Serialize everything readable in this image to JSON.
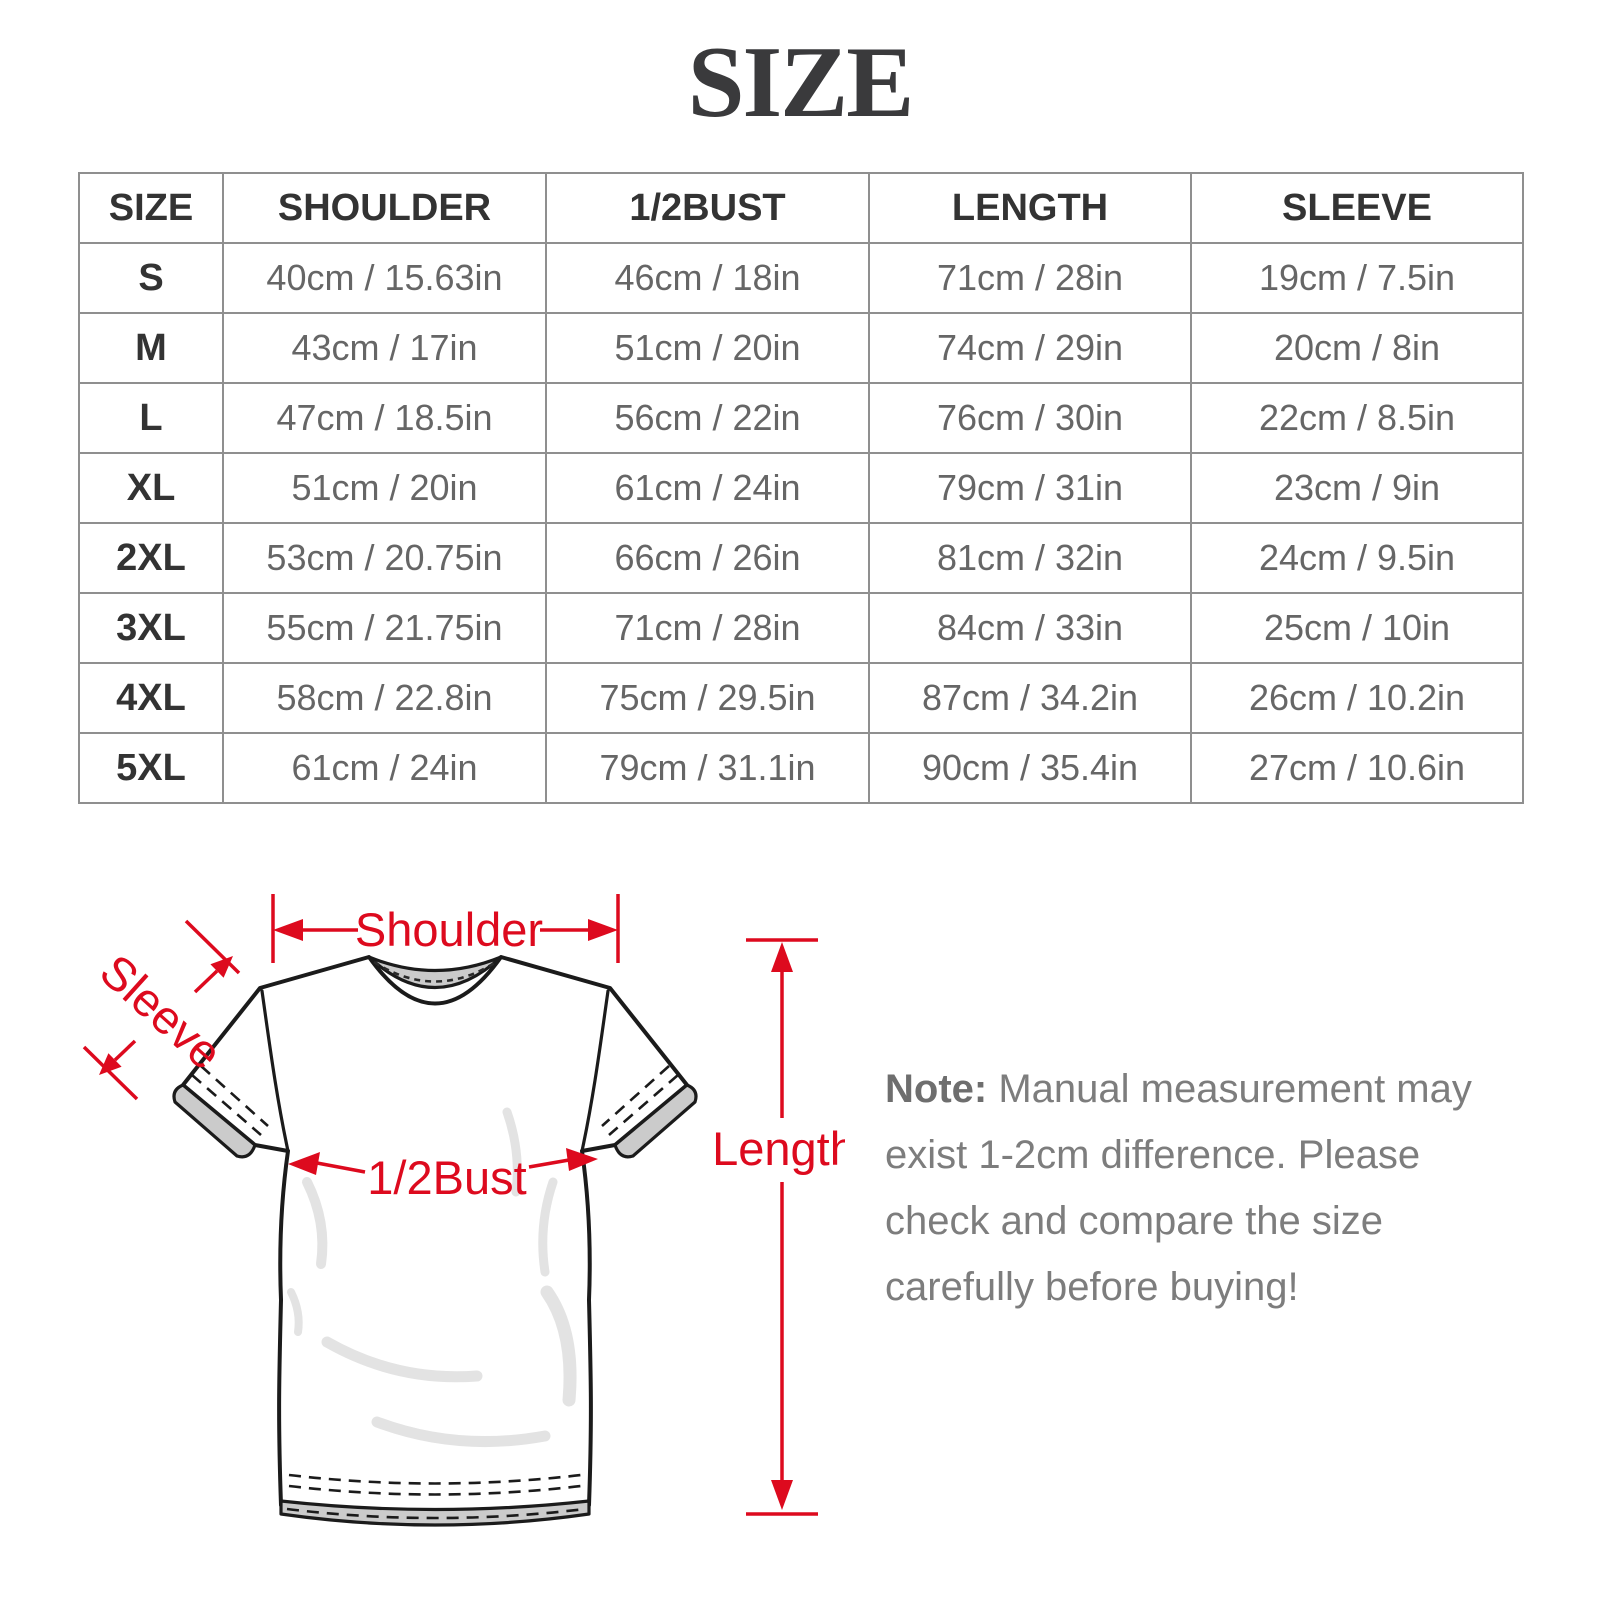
{
  "title": "SIZE",
  "table": {
    "headers": [
      "SIZE",
      "SHOULDER",
      "1/2BUST",
      "LENGTH",
      "SLEEVE"
    ],
    "rows": [
      [
        "S",
        "40cm / 15.63in",
        "46cm / 18in",
        "71cm / 28in",
        "19cm / 7.5in"
      ],
      [
        "M",
        "43cm / 17in",
        "51cm / 20in",
        "74cm / 29in",
        "20cm / 8in"
      ],
      [
        "L",
        "47cm / 18.5in",
        "56cm / 22in",
        "76cm / 30in",
        "22cm / 8.5in"
      ],
      [
        "XL",
        "51cm / 20in",
        "61cm / 24in",
        "79cm / 31in",
        "23cm / 9in"
      ],
      [
        "2XL",
        "53cm / 20.75in",
        "66cm / 26in",
        "81cm / 32in",
        "24cm / 9.5in"
      ],
      [
        "3XL",
        "55cm / 21.75in",
        "71cm / 28in",
        "84cm / 33in",
        "25cm / 10in"
      ],
      [
        "4XL",
        "58cm / 22.8in",
        "75cm / 29.5in",
        "87cm / 34.2in",
        "26cm / 10.2in"
      ],
      [
        "5XL",
        "61cm / 24in",
        "79cm / 31.1in",
        "90cm / 35.4in",
        "27cm / 10.6in"
      ]
    ]
  },
  "diagram": {
    "labels": {
      "shoulder": "Shoulder",
      "sleeve": "Sleeve",
      "half_bust": "1/2Bust",
      "length": "Length"
    }
  },
  "note": {
    "label": "Note:",
    "text": " Manual measurement may exist 1-2cm difference. Please check and compare the size carefully before buying!"
  },
  "colors": {
    "annotation_red": "#dd0a1e",
    "title_color": "#3a3a3c",
    "header_text": "#333333",
    "cell_text": "#666666",
    "table_border": "#8f8f8f",
    "note_text": "#7d7d7d",
    "shirt_outline": "#1b1b1b",
    "shirt_gray": "#cbcbcb"
  }
}
